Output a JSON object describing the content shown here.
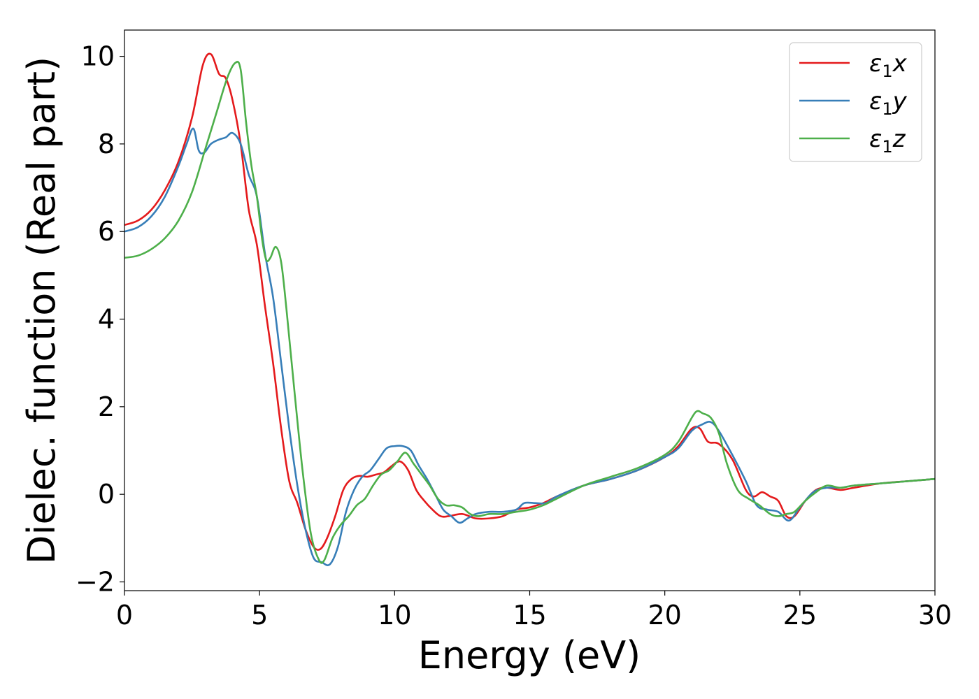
{
  "chart_data": {
    "type": "line",
    "xlabel": "Energy (eV)",
    "ylabel": "Dielec. function (Real part)",
    "xlim": [
      0,
      30
    ],
    "ylim": [
      -2.2,
      10.6
    ],
    "xticks": [
      0,
      5,
      10,
      15,
      20,
      25,
      30
    ],
    "yticks": [
      -2,
      0,
      2,
      4,
      6,
      8,
      10
    ],
    "xtick_labels": [
      "0",
      "5",
      "10",
      "15",
      "20",
      "25",
      "30"
    ],
    "ytick_labels": [
      "−2",
      "0",
      "2",
      "4",
      "6",
      "8",
      "10"
    ],
    "grid": false,
    "legend_position": "top-right",
    "series": [
      {
        "name": "ε₁x",
        "legend_base": "ε",
        "legend_sub": "1",
        "legend_tail": "x",
        "color": "#e41a1c",
        "x": [
          0,
          0.5,
          1.0,
          1.5,
          2.0,
          2.5,
          2.9,
          3.2,
          3.5,
          3.75,
          4.0,
          4.3,
          4.6,
          4.9,
          5.2,
          5.5,
          5.8,
          6.1,
          6.4,
          6.7,
          7.0,
          7.25,
          7.5,
          7.8,
          8.1,
          8.4,
          8.7,
          9.0,
          9.3,
          9.6,
          9.9,
          10.2,
          10.5,
          10.8,
          11.1,
          11.4,
          11.7,
          12.0,
          12.5,
          13.0,
          13.5,
          14.0,
          14.5,
          15.0,
          15.5,
          16.0,
          17.0,
          18.0,
          19.0,
          20.0,
          20.5,
          21.0,
          21.3,
          21.6,
          22.0,
          22.5,
          23.0,
          23.3,
          23.6,
          23.9,
          24.2,
          24.5,
          24.8,
          25.2,
          25.6,
          26.0,
          26.5,
          27.0,
          28.0,
          29.0,
          30.0
        ],
        "y": [
          6.15,
          6.25,
          6.5,
          6.95,
          7.6,
          8.6,
          9.8,
          10.05,
          9.6,
          9.5,
          9.0,
          8.0,
          6.5,
          5.7,
          4.3,
          3.0,
          1.5,
          0.3,
          -0.2,
          -0.8,
          -1.2,
          -1.25,
          -1.0,
          -0.5,
          0.1,
          0.35,
          0.42,
          0.4,
          0.45,
          0.5,
          0.65,
          0.75,
          0.55,
          0.1,
          -0.15,
          -0.35,
          -0.5,
          -0.5,
          -0.45,
          -0.55,
          -0.55,
          -0.5,
          -0.35,
          -0.3,
          -0.2,
          -0.05,
          0.2,
          0.35,
          0.55,
          0.85,
          1.1,
          1.5,
          1.5,
          1.2,
          1.15,
          0.8,
          0.1,
          -0.05,
          0.05,
          -0.05,
          -0.15,
          -0.5,
          -0.5,
          -0.15,
          0.1,
          0.15,
          0.1,
          0.15,
          0.25,
          0.3,
          0.35
        ]
      },
      {
        "name": "ε₁y",
        "legend_base": "ε",
        "legend_sub": "1",
        "legend_tail": "y",
        "color": "#377eb8",
        "x": [
          0,
          0.5,
          1.0,
          1.5,
          2.0,
          2.3,
          2.55,
          2.75,
          2.95,
          3.2,
          3.5,
          3.75,
          4.0,
          4.3,
          4.6,
          4.9,
          5.2,
          5.5,
          5.8,
          6.1,
          6.4,
          6.7,
          7.0,
          7.3,
          7.6,
          7.9,
          8.2,
          8.5,
          8.8,
          9.1,
          9.4,
          9.7,
          10.0,
          10.3,
          10.6,
          10.9,
          11.2,
          11.5,
          11.8,
          12.1,
          12.4,
          12.7,
          13.0,
          13.5,
          14.0,
          14.5,
          14.8,
          15.2,
          15.6,
          16.0,
          17.0,
          18.0,
          19.0,
          20.0,
          20.5,
          21.0,
          21.4,
          21.7,
          22.0,
          22.5,
          23.0,
          23.4,
          23.8,
          24.2,
          24.6,
          25.0,
          25.5,
          26.0,
          26.5,
          27.0,
          28.0,
          29.0,
          30.0
        ],
        "y": [
          6.0,
          6.1,
          6.35,
          6.8,
          7.5,
          8.0,
          8.35,
          7.85,
          7.8,
          8.0,
          8.1,
          8.15,
          8.25,
          8.0,
          7.3,
          6.8,
          5.5,
          4.5,
          3.0,
          1.5,
          0.2,
          -0.8,
          -1.45,
          -1.55,
          -1.6,
          -1.2,
          -0.4,
          0.1,
          0.4,
          0.55,
          0.8,
          1.05,
          1.1,
          1.1,
          1.0,
          0.65,
          0.35,
          0.0,
          -0.35,
          -0.5,
          -0.65,
          -0.55,
          -0.45,
          -0.4,
          -0.4,
          -0.35,
          -0.2,
          -0.2,
          -0.2,
          -0.05,
          0.2,
          0.35,
          0.55,
          0.85,
          1.05,
          1.45,
          1.6,
          1.65,
          1.45,
          0.9,
          0.3,
          -0.25,
          -0.35,
          -0.4,
          -0.6,
          -0.3,
          0.05,
          0.15,
          0.15,
          0.2,
          0.25,
          0.3,
          0.35
        ]
      },
      {
        "name": "ε₁z",
        "legend_base": "ε",
        "legend_sub": "1",
        "legend_tail": "z",
        "color": "#4daf4a",
        "x": [
          0,
          0.5,
          1.0,
          1.5,
          2.0,
          2.5,
          3.0,
          3.4,
          3.8,
          4.1,
          4.3,
          4.5,
          4.7,
          4.9,
          5.1,
          5.25,
          5.4,
          5.6,
          5.8,
          6.0,
          6.3,
          6.6,
          6.9,
          7.2,
          7.4,
          7.7,
          8.0,
          8.3,
          8.6,
          8.9,
          9.2,
          9.5,
          9.8,
          10.1,
          10.4,
          10.7,
          11.0,
          11.3,
          11.6,
          11.9,
          12.2,
          12.5,
          12.8,
          13.1,
          13.5,
          14.0,
          14.5,
          15.0,
          15.5,
          16.0,
          17.0,
          18.0,
          19.0,
          20.0,
          20.5,
          21.0,
          21.2,
          21.4,
          21.7,
          22.0,
          22.3,
          22.7,
          23.1,
          23.5,
          23.9,
          24.2,
          24.5,
          24.8,
          25.2,
          25.6,
          26.0,
          26.5,
          27.0,
          28.0,
          29.0,
          30.0
        ],
        "y": [
          5.4,
          5.45,
          5.6,
          5.85,
          6.25,
          6.9,
          7.9,
          8.7,
          9.5,
          9.85,
          9.7,
          8.5,
          7.5,
          6.8,
          5.8,
          5.35,
          5.4,
          5.65,
          5.3,
          4.2,
          2.3,
          0.5,
          -0.9,
          -1.5,
          -1.5,
          -1.0,
          -0.7,
          -0.5,
          -0.25,
          -0.1,
          0.2,
          0.45,
          0.55,
          0.75,
          0.95,
          0.7,
          0.45,
          0.2,
          -0.1,
          -0.25,
          -0.25,
          -0.3,
          -0.45,
          -0.5,
          -0.45,
          -0.45,
          -0.4,
          -0.35,
          -0.25,
          -0.1,
          0.2,
          0.4,
          0.6,
          0.9,
          1.2,
          1.75,
          1.9,
          1.85,
          1.75,
          1.4,
          0.7,
          0.1,
          -0.1,
          -0.25,
          -0.45,
          -0.5,
          -0.45,
          -0.4,
          -0.15,
          0.05,
          0.2,
          0.15,
          0.2,
          0.25,
          0.3,
          0.35
        ]
      }
    ]
  }
}
